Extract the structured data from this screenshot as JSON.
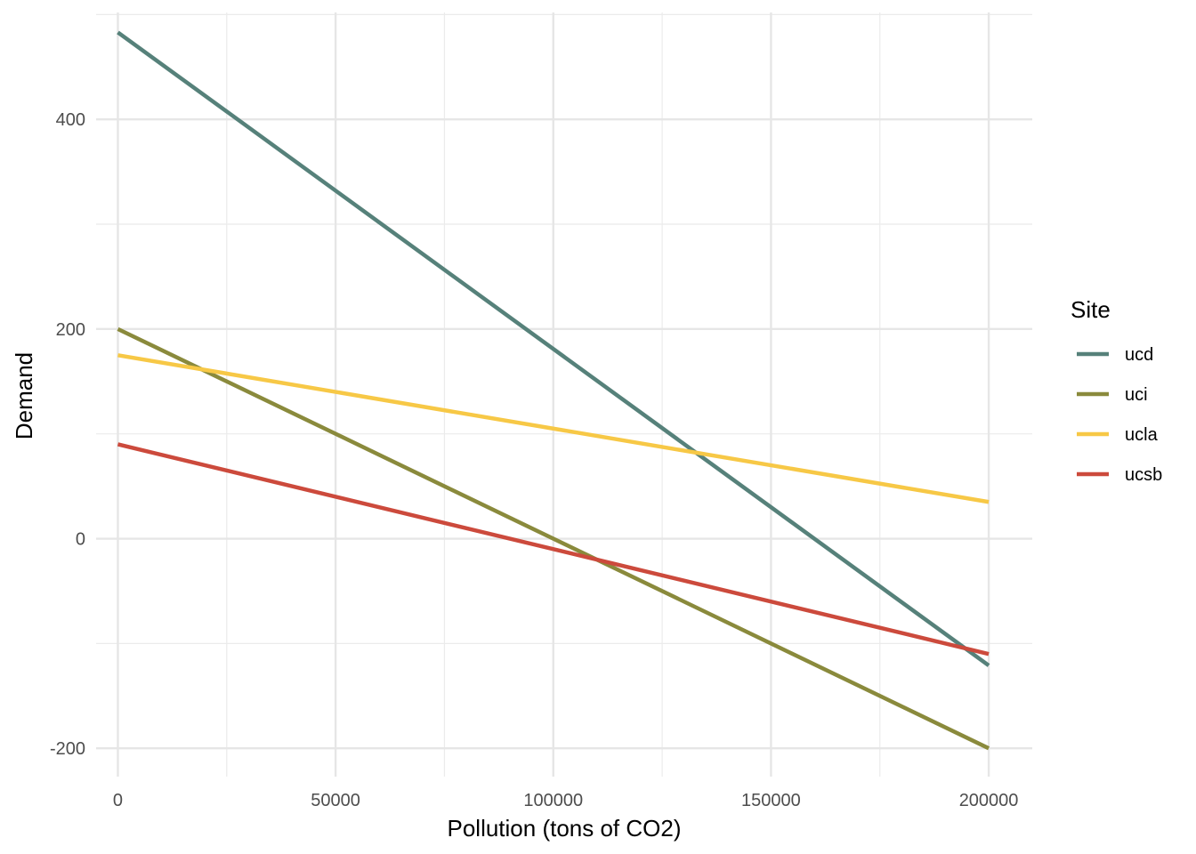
{
  "chart_data": {
    "type": "line",
    "title": "",
    "xlabel": "Pollution (tons of CO2)",
    "ylabel": "Demand",
    "xlim": [
      -5000,
      210000
    ],
    "ylim": [
      -227,
      502
    ],
    "x_ticks": [
      0,
      50000,
      100000,
      150000,
      200000
    ],
    "x_tick_labels": [
      "0",
      "50000",
      "100000",
      "150000",
      "200000"
    ],
    "x_minor": [
      25000,
      75000,
      125000,
      175000
    ],
    "y_ticks": [
      -200,
      0,
      200,
      400
    ],
    "y_tick_labels": [
      "-200",
      "0",
      "200",
      "400"
    ],
    "y_minor": [
      -100,
      100,
      300,
      500
    ],
    "grid": true,
    "legend": {
      "title": "Site",
      "position": "right"
    },
    "series": [
      {
        "name": "ucd",
        "color": "#56817a",
        "x": [
          0,
          200000
        ],
        "y": [
          483,
          -121
        ]
      },
      {
        "name": "uci",
        "color": "#8a8a3c",
        "x": [
          0,
          200000
        ],
        "y": [
          200,
          -200
        ]
      },
      {
        "name": "ucla",
        "color": "#f7c846",
        "x": [
          0,
          200000
        ],
        "y": [
          175,
          35
        ]
      },
      {
        "name": "ucsb",
        "color": "#cc4a3c",
        "x": [
          0,
          200000
        ],
        "y": [
          90,
          -110
        ]
      }
    ]
  }
}
